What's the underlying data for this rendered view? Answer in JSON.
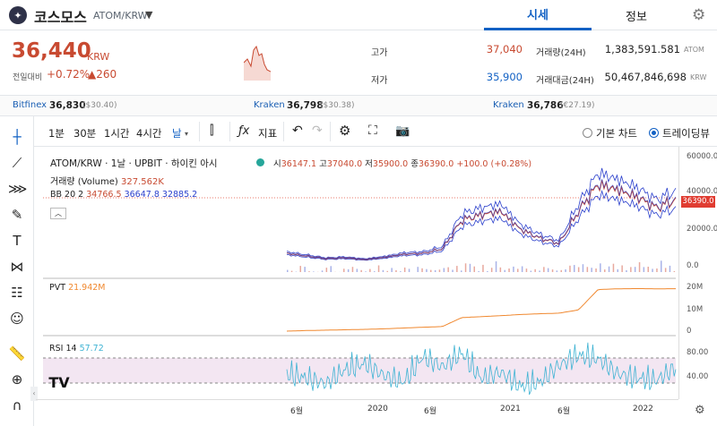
{
  "header": {
    "coin_name": "코스모스",
    "pair": "ATOM/KRW",
    "tabs": [
      "시세",
      "정보"
    ]
  },
  "summary": {
    "price": "36,440",
    "unit": "KRW",
    "change_label": "전일대비",
    "change_pct": "+0.72%",
    "change_val": "▲260",
    "high_label": "고가",
    "high": "37,040",
    "low_label": "저가",
    "low": "35,900",
    "vol_label": "거래량(24H)",
    "vol": "1,383,591.581",
    "vol_unit": "ATOM",
    "amt_label": "거래대금(24H)",
    "amt": "50,467,846,698",
    "amt_unit": "KRW"
  },
  "exchanges": [
    {
      "name": "Bitfinex",
      "price": "36,830",
      "usd": "($30.40)"
    },
    {
      "name": "Kraken",
      "price": "36,798",
      "usd": "($30.38)"
    },
    {
      "name": "Kraken",
      "price": "36,786",
      "usd": "(€27.19)"
    }
  ],
  "toolbar": {
    "intervals": [
      "1분",
      "30분",
      "1시간",
      "4시간",
      "날"
    ],
    "indicators": "지표",
    "basic_chart": "기본 차트",
    "trading_view": "트레이딩뷰"
  },
  "legend": {
    "title": "ATOM/KRW · 1날 · UPBIT · 하이킨 아시",
    "ohlc": {
      "o_label": "시",
      "o": "36147.1",
      "h_label": "고",
      "h": "37040.0",
      "l_label": "저",
      "l": "35900.0",
      "c_label": "종",
      "c": "36390.0",
      "chg": "+100.0 (+0.28%)"
    },
    "volume_label": "거래량 (Volume)",
    "volume": "327.562K",
    "bb_label": "BB 20 2",
    "bb_basis": "34766.5",
    "bb_upper": "36647.8",
    "bb_lower": "32885.2",
    "pvt_label": "PVT",
    "pvt": "21.942M",
    "rsi_label": "RSI 14",
    "rsi": "57.72"
  },
  "axes": {
    "price_ticks": [
      "60000.0",
      "40000.0",
      "20000.0",
      "0.0"
    ],
    "current_price": "36390.0",
    "pvt_ticks": [
      "20M",
      "10M",
      "0"
    ],
    "rsi_ticks": [
      "80.00",
      "40.00"
    ],
    "x_ticks": [
      "6월",
      "2020",
      "6월",
      "2021",
      "6월",
      "2022"
    ]
  },
  "colors": {
    "up": "#c84a31",
    "link": "#1261c4",
    "pvt": "#f0882f",
    "rsi": "#3fb3d3",
    "bb": "#2a3fcc"
  },
  "chart_data": [
    {
      "type": "line",
      "title": "ATOM/KRW",
      "series": [
        {
          "name": "ATOM/KRW",
          "x": [
            "2019-04",
            "2019-06",
            "2019-09",
            "2019-12",
            "2020-03",
            "2020-06",
            "2020-09",
            "2020-12",
            "2021-01",
            "2021-02",
            "2021-03",
            "2021-04",
            "2021-05",
            "2021-06",
            "2021-07",
            "2021-08",
            "2021-09",
            "2021-10",
            "2021-11",
            "2021-12",
            "2022-01"
          ],
          "values": [
            6500,
            5000,
            3500,
            4000,
            3000,
            4200,
            6000,
            6500,
            9000,
            25000,
            28000,
            30000,
            20000,
            15000,
            12000,
            30000,
            45000,
            42000,
            38000,
            32000,
            36390
          ]
        }
      ],
      "ylim": [
        0,
        60000
      ]
    },
    {
      "type": "line",
      "title": "PVT",
      "series": [
        {
          "name": "PVT",
          "values": [
            0,
            0.3,
            0.5,
            0.7,
            0.9,
            1.2,
            1.6,
            2.0,
            2.4,
            7.0,
            7.5,
            8.0,
            8.6,
            9.0,
            9.3,
            11.0,
            21.5,
            21.9,
            22.0,
            21.9,
            21.942
          ]
        }
      ],
      "ylim": [
        0,
        25
      ]
    },
    {
      "type": "line",
      "title": "RSI 14",
      "series": [
        {
          "name": "RSI 14",
          "values": [
            50,
            45,
            38,
            55,
            62,
            48,
            40,
            70,
            58,
            75,
            44,
            52,
            35,
            40,
            60,
            72,
            68,
            50,
            45,
            42,
            57.72
          ]
        }
      ],
      "ylim": [
        20,
        90
      ]
    }
  ]
}
